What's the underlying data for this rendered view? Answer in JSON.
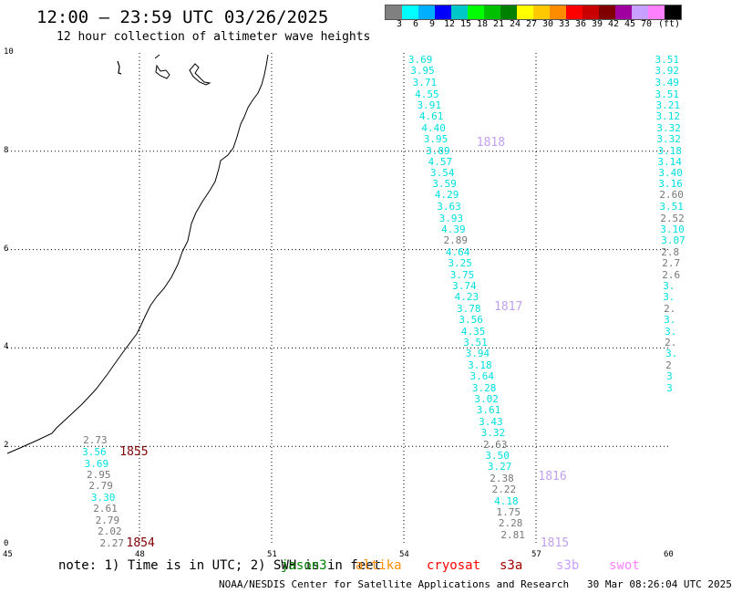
{
  "title": "12:00 – 23:59 UTC 03/26/2025",
  "subtitle": "12 hour collection of altimeter wave heights",
  "colorbar": {
    "colors": [
      "#808080",
      "#00ffff",
      "#00b0ff",
      "#0000ff",
      "#00c8c8",
      "#00ff00",
      "#00c000",
      "#008000",
      "#ffff00",
      "#ffc800",
      "#ff8c00",
      "#ff0000",
      "#c80000",
      "#800000",
      "#a000a0",
      "#c8a0ff",
      "#ff80ff",
      "#000000"
    ],
    "labels": [
      "3",
      "6",
      "9",
      "12",
      "15",
      "18",
      "21",
      "24",
      "27",
      "30",
      "33",
      "36",
      "39",
      "42",
      "45",
      "70",
      "(ft)"
    ]
  },
  "axes": {
    "x_ticks": [
      "45",
      "48",
      "51",
      "54",
      "57",
      "60"
    ],
    "y_ticks": [
      "0",
      "2",
      "4",
      "6",
      "8",
      "10"
    ],
    "xlim": [
      45,
      60
    ],
    "ylim": [
      0,
      10
    ]
  },
  "tracks": [
    {
      "name": "track-56",
      "readings": [
        {
          "lon": 54.1,
          "lat": 9.85,
          "v": "3.69",
          "c": "#00e0e0"
        },
        {
          "lon": 54.15,
          "lat": 9.62,
          "v": "3.95",
          "c": "#00e0e0"
        },
        {
          "lon": 54.2,
          "lat": 9.38,
          "v": "3.71",
          "c": "#00e0e0"
        },
        {
          "lon": 54.25,
          "lat": 9.15,
          "v": "4.55",
          "c": "#00e0e0"
        },
        {
          "lon": 54.3,
          "lat": 8.92,
          "v": "3.91",
          "c": "#00e0e0"
        },
        {
          "lon": 54.35,
          "lat": 8.7,
          "v": "4.61",
          "c": "#00e0e0"
        },
        {
          "lon": 54.4,
          "lat": 8.46,
          "v": "4.40",
          "c": "#00e0e0"
        },
        {
          "lon": 54.45,
          "lat": 8.24,
          "v": "3.95",
          "c": "#00e0e0"
        },
        {
          "lon": 54.5,
          "lat": 8.0,
          "v": "3.89",
          "c": "#00e0e0"
        },
        {
          "lon": 54.55,
          "lat": 7.78,
          "v": "4.57",
          "c": "#00e0e0"
        },
        {
          "lon": 54.6,
          "lat": 7.55,
          "v": "3.54",
          "c": "#00e0e0"
        },
        {
          "lon": 54.65,
          "lat": 7.32,
          "v": "3.59",
          "c": "#00e0e0"
        },
        {
          "lon": 54.7,
          "lat": 7.1,
          "v": "4.29",
          "c": "#00e0e0"
        },
        {
          "lon": 54.75,
          "lat": 6.86,
          "v": "3.63",
          "c": "#00e0e0"
        },
        {
          "lon": 54.8,
          "lat": 6.62,
          "v": "3.93",
          "c": "#00e0e0"
        },
        {
          "lon": 54.85,
          "lat": 6.4,
          "v": "4.39",
          "c": "#00e0e0"
        },
        {
          "lon": 54.9,
          "lat": 6.17,
          "v": "2.89",
          "c": "#777777"
        },
        {
          "lon": 54.95,
          "lat": 5.94,
          "v": "4.64",
          "c": "#00e0e0"
        },
        {
          "lon": 55.0,
          "lat": 5.71,
          "v": "3.25",
          "c": "#00e0e0"
        },
        {
          "lon": 55.05,
          "lat": 5.48,
          "v": "3.75",
          "c": "#00e0e0"
        },
        {
          "lon": 55.1,
          "lat": 5.25,
          "v": "3.74",
          "c": "#00e0e0"
        },
        {
          "lon": 55.15,
          "lat": 5.02,
          "v": "4.23",
          "c": "#00e0e0"
        },
        {
          "lon": 55.2,
          "lat": 4.79,
          "v": "3.78",
          "c": "#00e0e0"
        },
        {
          "lon": 55.25,
          "lat": 4.56,
          "v": "3.56",
          "c": "#00e0e0"
        },
        {
          "lon": 55.3,
          "lat": 4.33,
          "v": "4.35",
          "c": "#00e0e0"
        },
        {
          "lon": 55.35,
          "lat": 4.1,
          "v": "3.51",
          "c": "#00e0e0"
        },
        {
          "lon": 55.4,
          "lat": 3.87,
          "v": "3.94",
          "c": "#00e0e0"
        },
        {
          "lon": 55.45,
          "lat": 3.64,
          "v": "3.18",
          "c": "#00e0e0"
        },
        {
          "lon": 55.5,
          "lat": 3.41,
          "v": "3.64",
          "c": "#00e0e0"
        },
        {
          "lon": 55.55,
          "lat": 3.18,
          "v": "3.28",
          "c": "#00e0e0"
        },
        {
          "lon": 55.6,
          "lat": 2.95,
          "v": "3.02",
          "c": "#00e0e0"
        },
        {
          "lon": 55.65,
          "lat": 2.72,
          "v": "3.61",
          "c": "#00e0e0"
        },
        {
          "lon": 55.7,
          "lat": 2.49,
          "v": "3.43",
          "c": "#00e0e0"
        },
        {
          "lon": 55.75,
          "lat": 2.26,
          "v": "3.32",
          "c": "#00e0e0"
        },
        {
          "lon": 55.8,
          "lat": 2.03,
          "v": "2.63",
          "c": "#777777"
        },
        {
          "lon": 55.85,
          "lat": 1.8,
          "v": "3.50",
          "c": "#00e0e0"
        },
        {
          "lon": 55.9,
          "lat": 1.57,
          "v": "3.27",
          "c": "#00e0e0"
        },
        {
          "lon": 55.95,
          "lat": 1.34,
          "v": "2.38",
          "c": "#777777"
        },
        {
          "lon": 56.0,
          "lat": 1.11,
          "v": "2.22",
          "c": "#777777"
        },
        {
          "lon": 56.05,
          "lat": 0.88,
          "v": "4.18",
          "c": "#00e0e0"
        },
        {
          "lon": 56.1,
          "lat": 0.65,
          "v": "1.75",
          "c": "#777777"
        },
        {
          "lon": 56.15,
          "lat": 0.42,
          "v": "2.28",
          "c": "#777777"
        },
        {
          "lon": 56.2,
          "lat": 0.19,
          "v": "2.81",
          "c": "#777777"
        }
      ]
    },
    {
      "name": "track-60",
      "readings": [
        {
          "lon": 59.7,
          "lat": 9.85,
          "v": "3.51",
          "c": "#00e0e0"
        },
        {
          "lon": 59.7,
          "lat": 9.62,
          "v": "3.92",
          "c": "#00e0e0"
        },
        {
          "lon": 59.7,
          "lat": 9.38,
          "v": "3.49",
          "c": "#00e0e0"
        },
        {
          "lon": 59.7,
          "lat": 9.15,
          "v": "3.51",
          "c": "#00e0e0"
        },
        {
          "lon": 59.72,
          "lat": 8.92,
          "v": "3.21",
          "c": "#00e0e0"
        },
        {
          "lon": 59.72,
          "lat": 8.7,
          "v": "3.12",
          "c": "#00e0e0"
        },
        {
          "lon": 59.74,
          "lat": 8.46,
          "v": "3.32",
          "c": "#00e0e0"
        },
        {
          "lon": 59.74,
          "lat": 8.24,
          "v": "3.32",
          "c": "#00e0e0"
        },
        {
          "lon": 59.76,
          "lat": 8.0,
          "v": "3.18",
          "c": "#00e0e0"
        },
        {
          "lon": 59.76,
          "lat": 7.78,
          "v": "3.14",
          "c": "#00e0e0"
        },
        {
          "lon": 59.78,
          "lat": 7.55,
          "v": "3.40",
          "c": "#00e0e0"
        },
        {
          "lon": 59.78,
          "lat": 7.32,
          "v": "3.16",
          "c": "#00e0e0"
        },
        {
          "lon": 59.8,
          "lat": 7.1,
          "v": "2.60",
          "c": "#777777"
        },
        {
          "lon": 59.8,
          "lat": 6.86,
          "v": "3.51",
          "c": "#00e0e0"
        },
        {
          "lon": 59.82,
          "lat": 6.62,
          "v": "2.52",
          "c": "#777777"
        },
        {
          "lon": 59.82,
          "lat": 6.4,
          "v": "3.10",
          "c": "#00e0e0"
        },
        {
          "lon": 59.84,
          "lat": 6.17,
          "v": "3.07",
          "c": "#00e0e0"
        },
        {
          "lon": 59.84,
          "lat": 5.94,
          "v": "2.8",
          "c": "#777777"
        },
        {
          "lon": 59.86,
          "lat": 5.71,
          "v": "2.7",
          "c": "#777777"
        },
        {
          "lon": 59.86,
          "lat": 5.48,
          "v": "2.6",
          "c": "#777777"
        },
        {
          "lon": 59.88,
          "lat": 5.25,
          "v": "3.",
          "c": "#00e0e0"
        },
        {
          "lon": 59.88,
          "lat": 5.02,
          "v": "3.",
          "c": "#00e0e0"
        },
        {
          "lon": 59.9,
          "lat": 4.79,
          "v": "2.",
          "c": "#777777"
        },
        {
          "lon": 59.9,
          "lat": 4.56,
          "v": "3.",
          "c": "#00e0e0"
        },
        {
          "lon": 59.92,
          "lat": 4.33,
          "v": "3.",
          "c": "#00e0e0"
        },
        {
          "lon": 59.92,
          "lat": 4.1,
          "v": "2.",
          "c": "#777777"
        },
        {
          "lon": 59.94,
          "lat": 3.87,
          "v": "3.",
          "c": "#00e0e0"
        },
        {
          "lon": 59.94,
          "lat": 3.64,
          "v": "2",
          "c": "#777777"
        },
        {
          "lon": 59.96,
          "lat": 3.41,
          "v": "3",
          "c": "#00e0e0"
        },
        {
          "lon": 59.96,
          "lat": 3.18,
          "v": "3",
          "c": "#00e0e0"
        }
      ]
    },
    {
      "name": "track-46",
      "readings": [
        {
          "lon": 46.72,
          "lat": 2.11,
          "v": "2.73",
          "c": "#777777"
        },
        {
          "lon": 46.7,
          "lat": 1.87,
          "v": "3.56",
          "c": "#00e0e0"
        },
        {
          "lon": 46.75,
          "lat": 1.64,
          "v": "3.69",
          "c": "#00e0e0"
        },
        {
          "lon": 46.8,
          "lat": 1.41,
          "v": "2.95",
          "c": "#777777"
        },
        {
          "lon": 46.85,
          "lat": 1.18,
          "v": "2.79",
          "c": "#777777"
        },
        {
          "lon": 46.9,
          "lat": 0.95,
          "v": "3.30",
          "c": "#00e0e0"
        },
        {
          "lon": 46.95,
          "lat": 0.72,
          "v": "2.61",
          "c": "#777777"
        },
        {
          "lon": 47.0,
          "lat": 0.49,
          "v": "2.79",
          "c": "#777777"
        },
        {
          "lon": 47.05,
          "lat": 0.26,
          "v": "2.02",
          "c": "#777777"
        },
        {
          "lon": 47.1,
          "lat": 0.02,
          "v": "2.27",
          "c": "#777777"
        }
      ]
    }
  ],
  "time_labels": [
    {
      "text": "1818",
      "lon": 55.65,
      "lat": 8.17,
      "c": "#c0a0f0"
    },
    {
      "text": "1817",
      "lon": 56.05,
      "lat": 4.83,
      "c": "#c0a0f0"
    },
    {
      "text": "1816",
      "lon": 57.05,
      "lat": 1.37,
      "c": "#c0a0f0"
    },
    {
      "text": "1815",
      "lon": 57.1,
      "lat": 0.02,
      "c": "#c0a0f0"
    },
    {
      "text": "1855",
      "lon": 47.55,
      "lat": 1.87,
      "c": "#800000"
    },
    {
      "text": "1854",
      "lon": 47.7,
      "lat": 0.02,
      "c": "#800000"
    }
  ],
  "note": "note: 1) Time is in UTC; 2) SWH is in feet",
  "satellites": [
    {
      "name": "jason3",
      "c": "#008000"
    },
    {
      "name": "altika",
      "c": "#ff8c00"
    },
    {
      "name": "cryosat",
      "c": "#ff0000"
    },
    {
      "name": "s3a",
      "c": "#a00000"
    },
    {
      "name": "s3b",
      "c": "#c8a0ff"
    },
    {
      "name": "swot",
      "c": "#ff80ff"
    }
  ],
  "footer": "NOAA/NESDIS Center for Satellite Applications and Research   30 Mar 08:26:04 UTC 2025"
}
